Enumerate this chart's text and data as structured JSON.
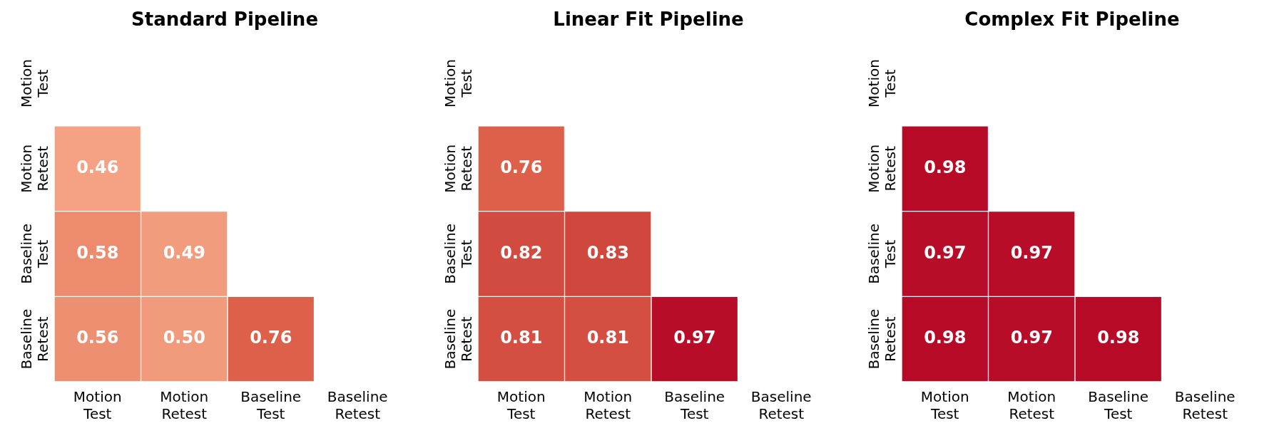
{
  "chart_data": [
    {
      "type": "heatmap",
      "title": "Standard Pipeline",
      "categories": [
        "Motion Test",
        "Motion Retest",
        "Baseline Test",
        "Baseline Retest"
      ],
      "y_categories": [
        "Motion Test",
        "Motion Retest",
        "Baseline Test",
        "Baseline Retest"
      ],
      "cells": [
        [
          null,
          null,
          null,
          null
        ],
        [
          0.46,
          null,
          null,
          null
        ],
        [
          0.58,
          0.49,
          null,
          null
        ],
        [
          0.56,
          0.5,
          0.76,
          null
        ]
      ],
      "cell_labels": [
        [
          null,
          null,
          null,
          null
        ],
        [
          "0.46",
          null,
          null,
          null
        ],
        [
          "0.58",
          "0.49",
          null,
          null
        ],
        [
          "0.56",
          "0.50",
          "0.76",
          null
        ]
      ]
    },
    {
      "type": "heatmap",
      "title": "Linear Fit Pipeline",
      "categories": [
        "Motion Test",
        "Motion Retest",
        "Baseline Test",
        "Baseline Retest"
      ],
      "y_categories": [
        "Motion Test",
        "Motion Retest",
        "Baseline Test",
        "Baseline Retest"
      ],
      "cells": [
        [
          null,
          null,
          null,
          null
        ],
        [
          0.76,
          null,
          null,
          null
        ],
        [
          0.82,
          0.83,
          null,
          null
        ],
        [
          0.81,
          0.81,
          0.97,
          null
        ]
      ],
      "cell_labels": [
        [
          null,
          null,
          null,
          null
        ],
        [
          "0.76",
          null,
          null,
          null
        ],
        [
          "0.82",
          "0.83",
          null,
          null
        ],
        [
          "0.81",
          "0.81",
          "0.97",
          null
        ]
      ]
    },
    {
      "type": "heatmap",
      "title": "Complex Fit Pipeline",
      "categories": [
        "Motion Test",
        "Motion Retest",
        "Baseline Test",
        "Baseline Retest"
      ],
      "y_categories": [
        "Motion Test",
        "Motion Retest",
        "Baseline Test",
        "Baseline Retest"
      ],
      "cells": [
        [
          null,
          null,
          null,
          null
        ],
        [
          0.98,
          null,
          null,
          null
        ],
        [
          0.97,
          0.97,
          null,
          null
        ],
        [
          0.98,
          0.97,
          0.98,
          null
        ]
      ],
      "cell_labels": [
        [
          null,
          null,
          null,
          null
        ],
        [
          "0.98",
          null,
          null,
          null
        ],
        [
          "0.97",
          "0.97",
          null,
          null
        ],
        [
          "0.98",
          "0.97",
          "0.98",
          null
        ]
      ]
    }
  ]
}
